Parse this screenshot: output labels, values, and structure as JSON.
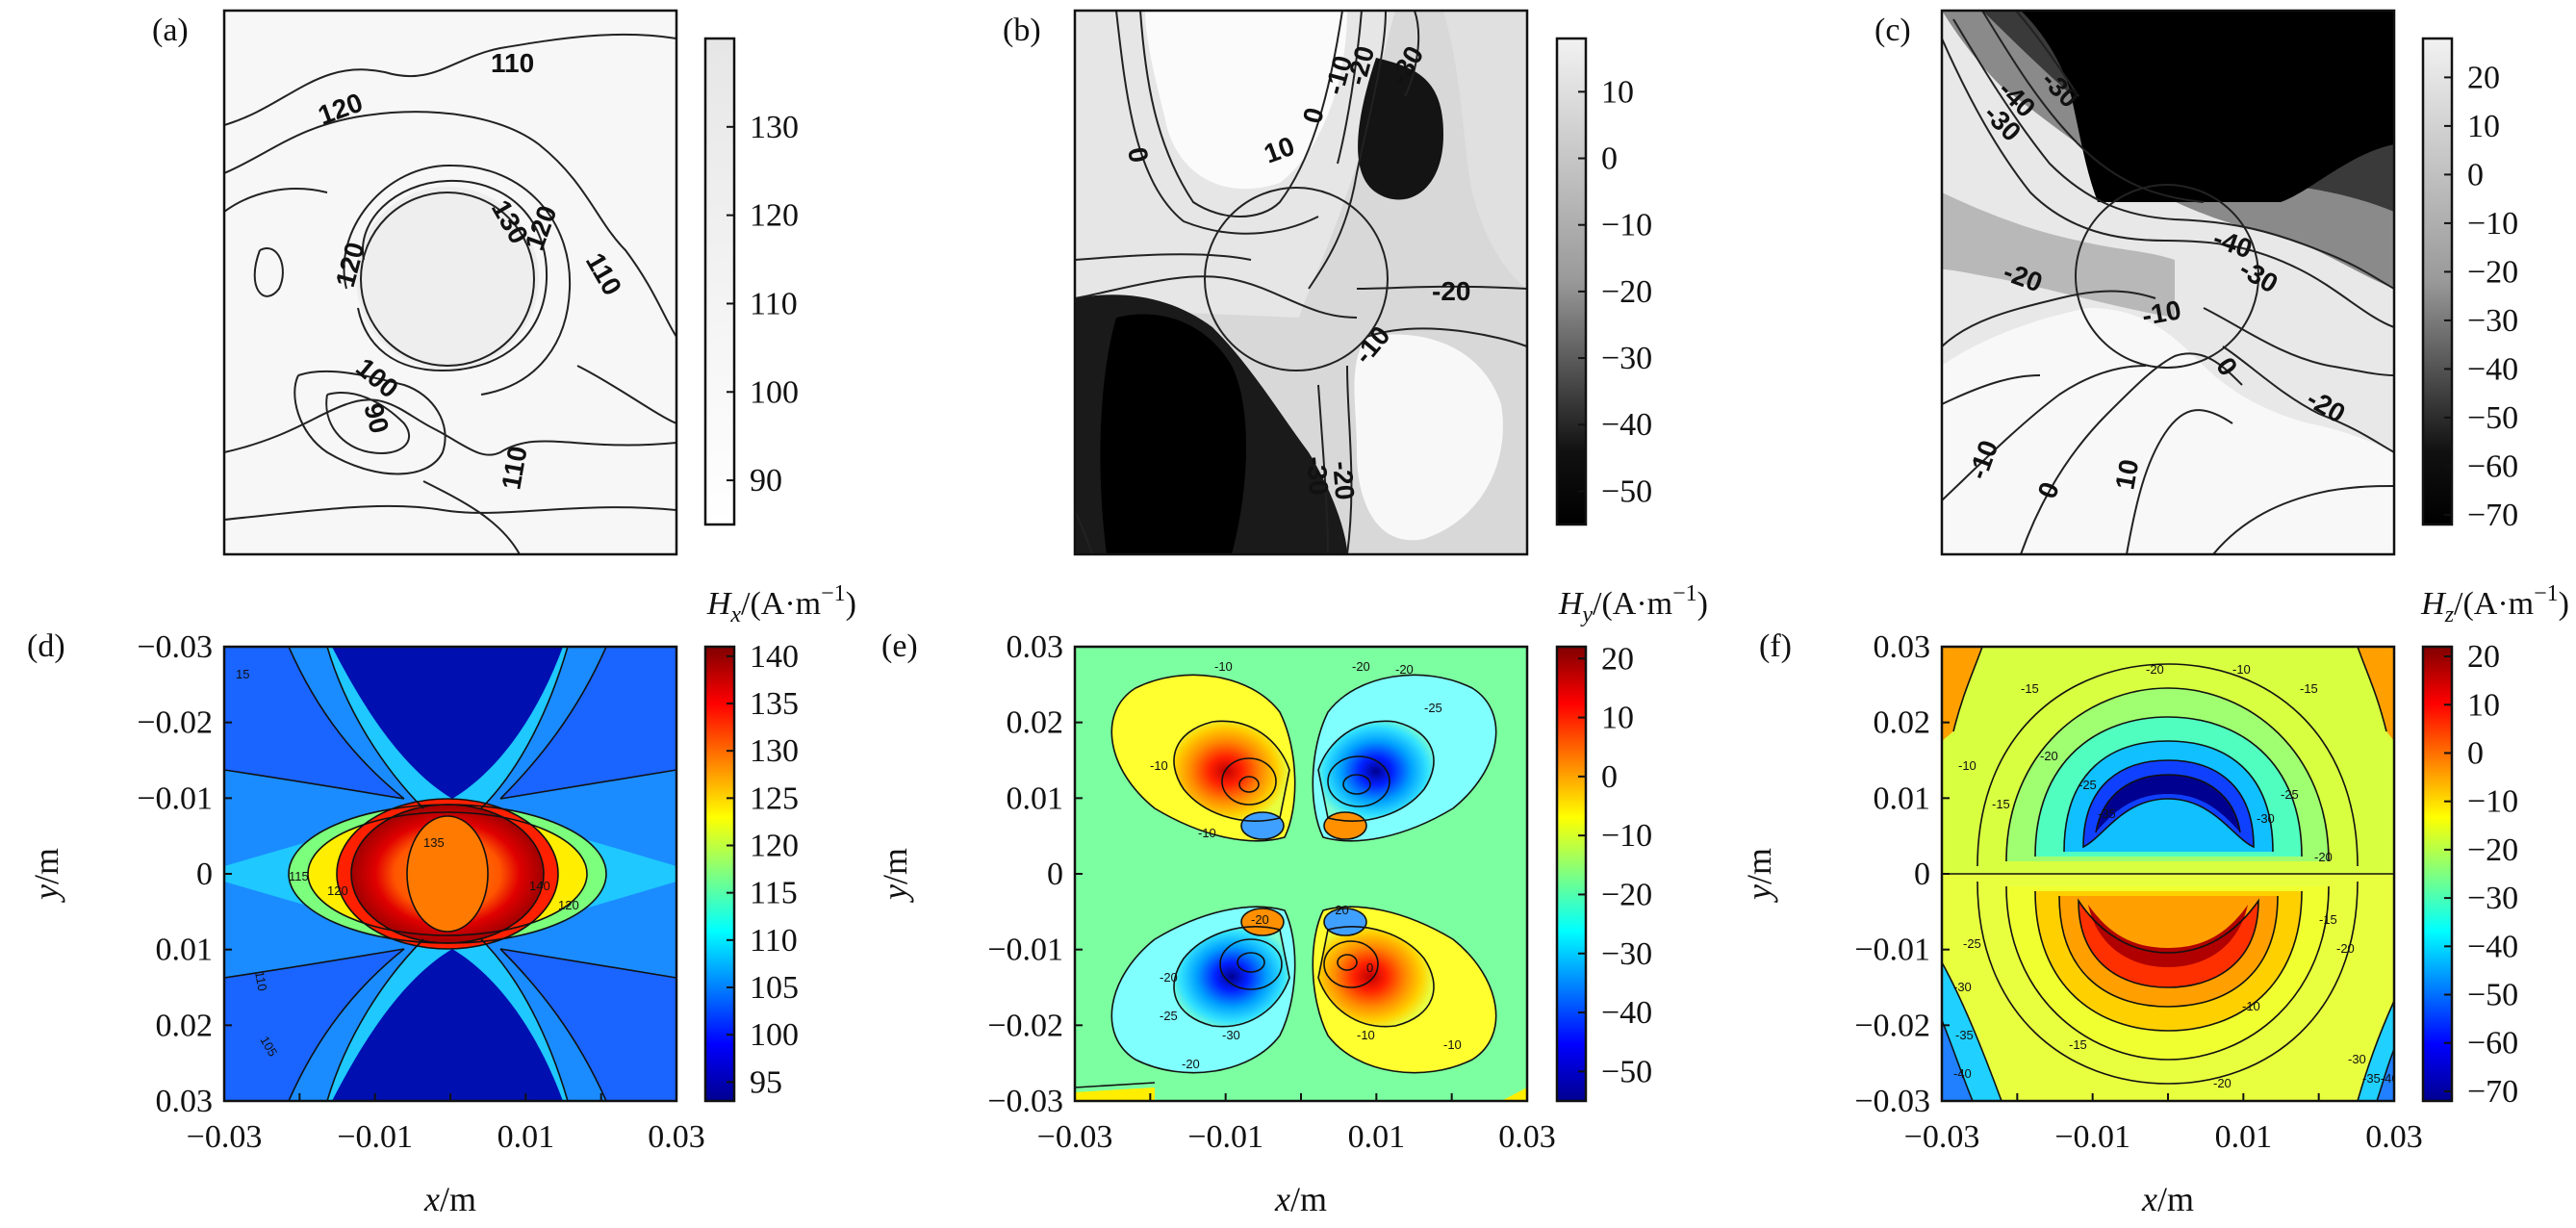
{
  "chart_data": [
    {
      "panel": "(a)",
      "type": "heatmap",
      "colormap": "gray",
      "contour_labels": [
        "110",
        "120",
        "130",
        "120",
        "110",
        "120",
        "100",
        "90",
        "110"
      ],
      "colorbar": {
        "ticks": [
          "130",
          "120",
          "110",
          "100",
          "90"
        ],
        "range": [
          85,
          140
        ]
      },
      "circle": true
    },
    {
      "panel": "(b)",
      "type": "heatmap",
      "colormap": "gray",
      "contour_labels": [
        "0",
        "10",
        "0",
        "-10",
        "-20",
        "-30",
        "-20",
        "-10",
        "-30",
        "-20"
      ],
      "colorbar": {
        "ticks": [
          "10",
          "0",
          "−10",
          "−20",
          "−30",
          "−40",
          "−50"
        ],
        "range": [
          -55,
          18
        ]
      },
      "circle": true
    },
    {
      "panel": "(c)",
      "type": "heatmap",
      "colormap": "gray",
      "contour_labels": [
        "-40",
        "-30",
        "-30",
        "-40",
        "-20",
        "-30",
        "-10",
        "-20",
        "0",
        "10",
        "0",
        "-10"
      ],
      "colorbar": {
        "ticks": [
          "20",
          "10",
          "0",
          "−10",
          "−20",
          "−30",
          "−40",
          "−50",
          "−60",
          "−70"
        ],
        "range": [
          -72,
          28
        ]
      },
      "circle": true
    },
    {
      "panel": "(d)",
      "type": "heatmap",
      "colormap": "jet",
      "colorbar_title": "H_x/(A·m⁻¹)",
      "colorbar": {
        "ticks": [
          "140",
          "135",
          "130",
          "125",
          "120",
          "115",
          "110",
          "105",
          "100",
          "95"
        ],
        "range": [
          93,
          141
        ]
      },
      "xlabel": "x/m",
      "ylabel": "y/m",
      "xticks": [
        "−0.03",
        "−0.01",
        "0.01",
        "0.03"
      ],
      "yticks": [
        "−0.03",
        "−0.02",
        "−0.01",
        "0",
        "0.01",
        "0.02",
        "0.03"
      ],
      "xlim": [
        -0.03,
        0.03
      ],
      "ylim": [
        -0.03,
        0.03
      ]
    },
    {
      "panel": "(e)",
      "type": "heatmap",
      "colormap": "jet",
      "colorbar_title": "H_y/(A·m⁻¹)",
      "colorbar": {
        "ticks": [
          "20",
          "10",
          "0",
          "−10",
          "−20",
          "−30",
          "−40",
          "−50"
        ],
        "range": [
          -55,
          22
        ]
      },
      "xlabel": "x/m",
      "ylabel": "y/m",
      "xticks": [
        "−0.03",
        "−0.01",
        "0.01",
        "0.03"
      ],
      "yticks": [
        "0.03",
        "0.02",
        "0.01",
        "0",
        "−0.01",
        "−0.02",
        "−0.03"
      ],
      "xlim": [
        -0.03,
        0.03
      ],
      "ylim": [
        -0.03,
        0.03
      ]
    },
    {
      "panel": "(f)",
      "type": "heatmap",
      "colormap": "jet",
      "colorbar_title": "H_z/(A·m⁻¹)",
      "colorbar": {
        "ticks": [
          "20",
          "10",
          "0",
          "−10",
          "−20",
          "−30",
          "−40",
          "−50",
          "−60",
          "−70"
        ],
        "range": [
          -72,
          22
        ]
      },
      "xlabel": "x/m",
      "ylabel": "y/m",
      "xticks": [
        "−0.03",
        "−0.01",
        "0.01",
        "0.03"
      ],
      "yticks": [
        "0.03",
        "0.02",
        "0.01",
        "0",
        "−0.01",
        "−0.02",
        "−0.03"
      ],
      "xlim": [
        -0.03,
        0.03
      ],
      "ylim": [
        -0.03,
        0.03
      ]
    }
  ],
  "labels": {
    "a": "(a)",
    "b": "(b)",
    "c": "(c)",
    "d": "(d)",
    "e": "(e)",
    "f": "(f)",
    "hx_var": "H",
    "hx_sub": "x",
    "hy_var": "H",
    "hy_sub": "y",
    "hz_var": "H",
    "hz_sub": "z",
    "unit": "/(A·m",
    "unit_exp": "−1",
    "unit_close": ")",
    "x_var": "x",
    "y_var": "y",
    "m": "/m"
  }
}
